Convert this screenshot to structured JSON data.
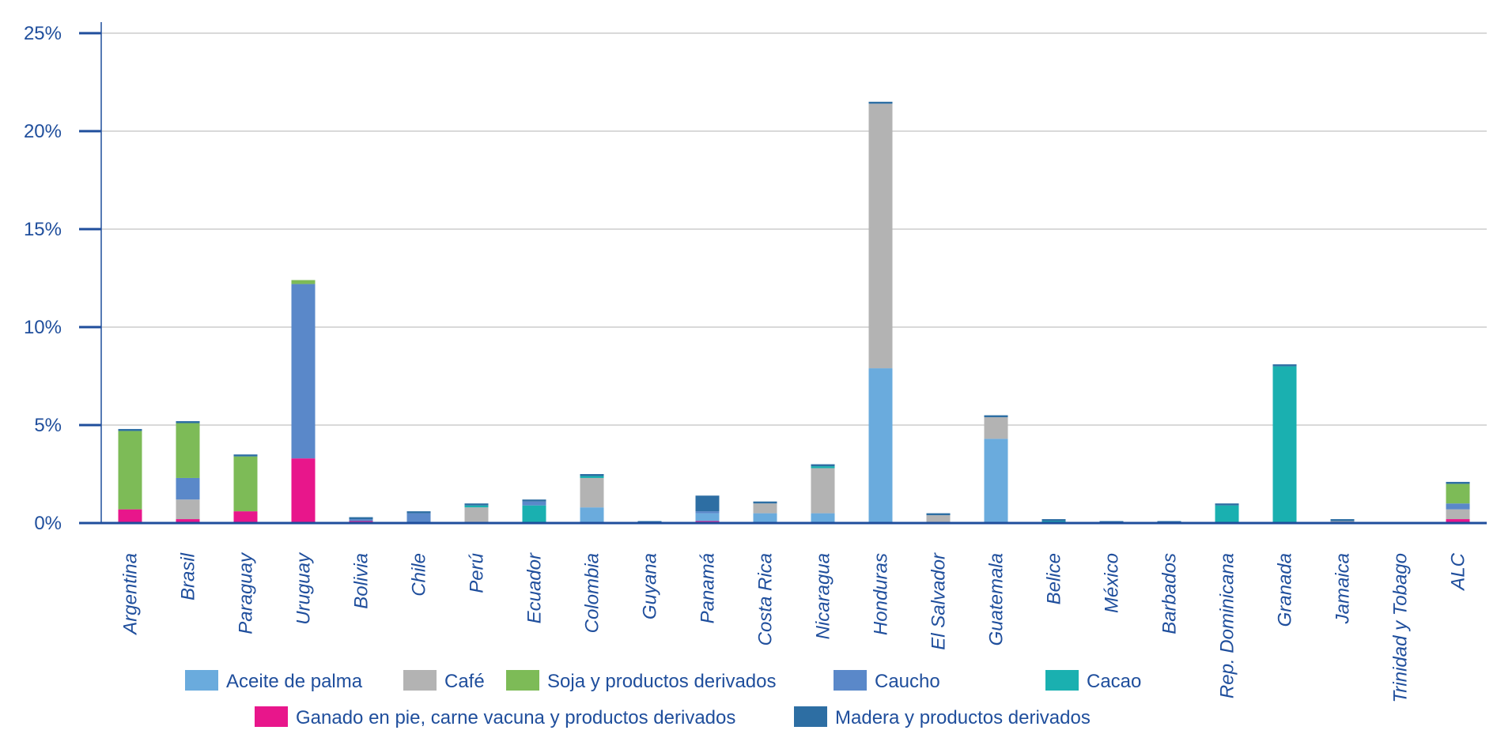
{
  "colors": {
    "axis": "#1f4e9c",
    "text": "#1f4e9c",
    "grid": "#d9d9d9"
  },
  "legend": [
    {
      "label": "Aceite de palma",
      "color": "#6aabdd"
    },
    {
      "label": "Café",
      "color": "#b3b3b3"
    },
    {
      "label": "Soja y productos derivados",
      "color": "#7dbb57"
    },
    {
      "label": "Caucho",
      "color": "#5a88c9"
    },
    {
      "label": "Cacao",
      "color": "#1ab0b0"
    },
    {
      "label": "Ganado en pie, carne vacuna y productos derivados",
      "color": "#e8168b"
    },
    {
      "label": "Madera y productos derivados",
      "color": "#2d6ea3"
    }
  ],
  "chart_data": {
    "type": "bar",
    "stacked": true,
    "title": "",
    "xlabel": "",
    "ylabel": "",
    "ylim": [
      0,
      25
    ],
    "y_ticks": [
      0,
      5,
      10,
      15,
      20,
      25
    ],
    "y_tick_labels": [
      "0%",
      "5%",
      "10%",
      "15%",
      "20%",
      "25%"
    ],
    "grid": true,
    "legend_position": "bottom",
    "categories": [
      "Argentina",
      "Brasil",
      "Paraguay",
      "Uruguay",
      "Bolivia",
      "Chile",
      "Perú",
      "Ecuador",
      "Colombia",
      "Guyana",
      "Panamá",
      "Costa Rica",
      "Nicaragua",
      "Honduras",
      "El Salvador",
      "Guatemala",
      "Belice",
      "México",
      "Barbados",
      "Rep. Dominicana",
      "Granada",
      "Jamaica",
      "Trinidad y Tobago",
      "ALC"
    ],
    "series": [
      {
        "name": "Ganado en pie, carne vacuna y productos derivados",
        "color": "#e8168b",
        "values": [
          0.7,
          0.2,
          0.6,
          3.3,
          0.1,
          0,
          0,
          0,
          0,
          0,
          0.1,
          0,
          0,
          0,
          0,
          0,
          0,
          0,
          0,
          0,
          0,
          0,
          0,
          0.2
        ]
      },
      {
        "name": "Aceite de palma",
        "color": "#6aabdd",
        "values": [
          0,
          0,
          0,
          0,
          0,
          0,
          0,
          0,
          0.8,
          0,
          0.4,
          0.5,
          0.5,
          7.9,
          0,
          4.3,
          0,
          0,
          0,
          0,
          0,
          0,
          0,
          0
        ]
      },
      {
        "name": "Café",
        "color": "#b3b3b3",
        "values": [
          0,
          1.0,
          0,
          0,
          0,
          0,
          0.8,
          0,
          1.5,
          0,
          0,
          0.5,
          2.3,
          13.5,
          0.4,
          1.1,
          0,
          0,
          0,
          0,
          0,
          0.1,
          0,
          0.5
        ]
      },
      {
        "name": "Cacao",
        "color": "#1ab0b0",
        "values": [
          0,
          0,
          0,
          0,
          0,
          0,
          0.1,
          0.9,
          0.1,
          0,
          0,
          0,
          0.1,
          0,
          0,
          0,
          0.1,
          0,
          0,
          0.9,
          8.0,
          0,
          0,
          0
        ]
      },
      {
        "name": "Caucho",
        "color": "#5a88c9",
        "values": [
          0,
          1.1,
          0,
          8.9,
          0.1,
          0.5,
          0,
          0.2,
          0,
          0,
          0.1,
          0,
          0,
          0,
          0,
          0,
          0,
          0,
          0,
          0,
          0,
          0,
          0,
          0.3
        ]
      },
      {
        "name": "Soja y productos derivados",
        "color": "#7dbb57",
        "values": [
          4.0,
          2.8,
          2.8,
          0.2,
          0,
          0,
          0,
          0,
          0,
          0,
          0,
          0,
          0,
          0,
          0,
          0,
          0,
          0,
          0,
          0,
          0,
          0,
          0,
          1.0
        ]
      },
      {
        "name": "Madera y productos derivados",
        "color": "#2d6ea3",
        "values": [
          0.1,
          0.1,
          0.1,
          0,
          0.1,
          0.1,
          0.1,
          0.1,
          0.1,
          0.1,
          0.8,
          0.1,
          0.1,
          0.1,
          0.1,
          0.1,
          0.1,
          0.1,
          0.1,
          0.1,
          0.1,
          0.1,
          0,
          0.1
        ]
      }
    ]
  }
}
